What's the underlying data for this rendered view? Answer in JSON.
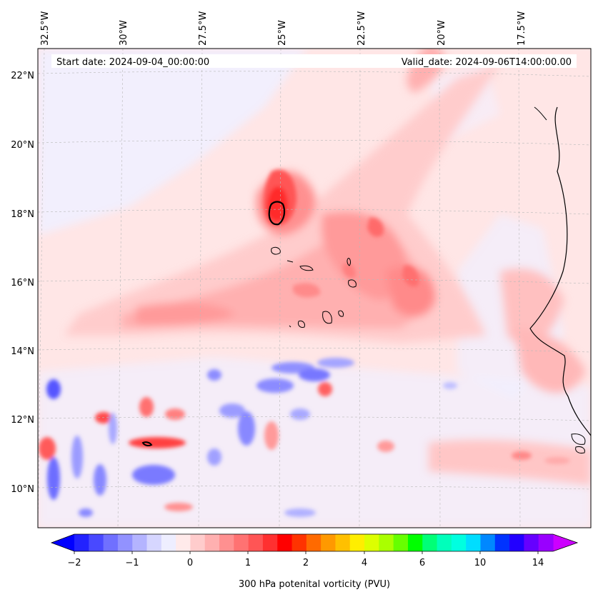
{
  "map": {
    "start_date": "Start date: 2024-09-04_00:00:00",
    "valid_date": "Valid_date: 2024-09-06T14:00:00.00",
    "lon_labels": [
      "32.5°W",
      "30°W",
      "27.5°W",
      "25°W",
      "22.5°W",
      "20°W",
      "17.5°W"
    ],
    "lat_labels": [
      "22°N",
      "20°N",
      "18°N",
      "16°N",
      "14°N",
      "12°N",
      "10°N"
    ],
    "highlight_contour_level_pvu": 2
  },
  "colorbar": {
    "label": "300 hPa potenital vorticity (PVU)",
    "ticks": [
      "−2",
      "−1",
      "0",
      "1",
      "2",
      "4",
      "6",
      "10",
      "14"
    ],
    "colors": [
      "#0000ff",
      "#2222ff",
      "#4949ff",
      "#7070ff",
      "#9292ff",
      "#b4b4ff",
      "#d6d6ff",
      "#eeeeff",
      "#ffeaea",
      "#ffcccc",
      "#ffb0b0",
      "#ff9090",
      "#ff7272",
      "#ff5555",
      "#ff3030",
      "#ff0000",
      "#ff3300",
      "#ff6a00",
      "#ff9900",
      "#ffc000",
      "#ffee00",
      "#ddff00",
      "#aaff00",
      "#66ff00",
      "#00ff00",
      "#00ff77",
      "#00ffbb",
      "#00ffe0",
      "#00ddff",
      "#0088ff",
      "#0033ff",
      "#2200ff",
      "#6600ff",
      "#9900ff",
      "#cc00ff"
    ]
  }
}
